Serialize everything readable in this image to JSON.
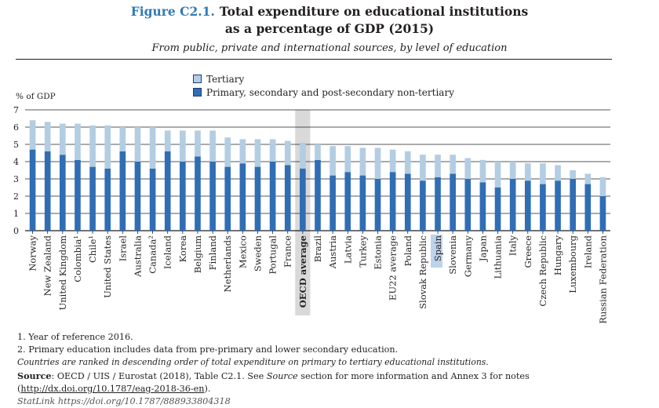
{
  "header": {
    "figure_label": "Figure C2.1.",
    "title_line1": "Total expenditure on educational institutions",
    "title_line2": "as a percentage of GDP (2015)",
    "subtitle": "From public, private and international sources, by level of education"
  },
  "colors": {
    "tertiary": "#b3cde3",
    "primary": "#2f6eb5",
    "highlight": "#d9d9d9",
    "figure_label": "#2f7ab8",
    "spain_highlight": "#bcd3ea"
  },
  "chart_data": {
    "type": "bar",
    "stacked": true,
    "ylabel": "% of GDP",
    "ylim": [
      0,
      7
    ],
    "yticks": [
      0,
      1,
      2,
      3,
      4,
      5,
      6,
      7
    ],
    "grid": true,
    "legend_position": "top",
    "categories": [
      "Norway",
      "New Zealand",
      "United Kingdom",
      "Colombia¹",
      "Chile¹",
      "United States",
      "Israel",
      "Australia",
      "Canada²",
      "Iceland",
      "Korea",
      "Belgium",
      "Finland",
      "Netherlands",
      "Mexico",
      "Sweden",
      "Portugal",
      "France",
      "OECD average",
      "Brazil",
      "Austria",
      "Latvia",
      "Turkey",
      "Estonia",
      "EU22 average",
      "Poland",
      "Slovak Republic",
      "Spain",
      "Slovenia",
      "Germany",
      "Japan",
      "Lithuania",
      "Italy",
      "Greece",
      "Czech Republic",
      "Hungary",
      "Luxembourg",
      "Ireland",
      "Russian Federation"
    ],
    "bold_categories": [
      "OECD average"
    ],
    "shaded_categories": [
      "OECD average"
    ],
    "highlighted_categories": [
      "Spain"
    ],
    "series": [
      {
        "name": "Primary, secondary and post-secondary non-tertiary",
        "values": [
          4.7,
          4.6,
          4.4,
          4.1,
          3.7,
          3.6,
          4.6,
          4.0,
          3.6,
          4.6,
          4.0,
          4.3,
          4.0,
          3.7,
          3.9,
          3.7,
          4.0,
          3.8,
          3.6,
          4.1,
          3.2,
          3.4,
          3.2,
          3.0,
          3.4,
          3.3,
          2.9,
          3.1,
          3.3,
          3.0,
          2.8,
          2.5,
          3.0,
          2.9,
          2.7,
          2.9,
          3.0,
          2.7,
          2.0
        ]
      },
      {
        "name": "Tertiary",
        "values": [
          1.7,
          1.7,
          1.8,
          2.1,
          2.4,
          2.5,
          1.4,
          2.0,
          2.4,
          1.2,
          1.8,
          1.5,
          1.8,
          1.7,
          1.4,
          1.6,
          1.3,
          1.4,
          1.5,
          0.9,
          1.7,
          1.5,
          1.6,
          1.8,
          1.3,
          1.3,
          1.5,
          1.3,
          1.1,
          1.2,
          1.3,
          1.5,
          1.0,
          1.0,
          1.2,
          0.9,
          0.5,
          0.6,
          1.1
        ]
      }
    ]
  },
  "legend": {
    "tertiary": "Tertiary",
    "primary": "Primary, secondary and post-secondary non-tertiary"
  },
  "notes": {
    "note1": "1. Year of reference 2016.",
    "note2": "2. Primary education includes data from pre-primary and lower secondary education.",
    "ranking": "Countries are ranked in descending order of total expenditure on primary to tertiary educational institutions.",
    "source_label": "Source",
    "source_text": ": OECD / UIS / Eurostat (2018), Table C2.1. See ",
    "source_word": "Source",
    "source_text2": " section for more information and Annex 3 for notes (",
    "source_link": "http://dx.doi.org/10.1787/eag-2018-36-en",
    "source_end": ").",
    "statlink": "StatLink  https://doi.org/10.1787/888933804318"
  }
}
